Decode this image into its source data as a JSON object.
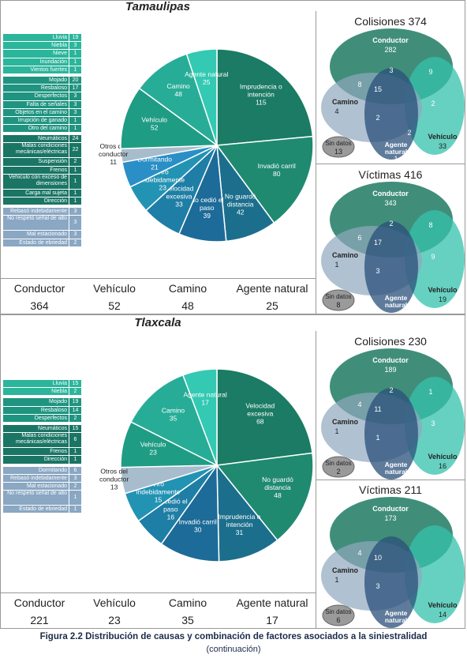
{
  "colors": {
    "conductor": "#1f7a64",
    "vehiculo": "#22a088",
    "camino": "#2fc0a8",
    "agente": "#3dcdb5",
    "otros": "#9fb6c9",
    "blue1": "#1c6f9c",
    "blue2": "#2184b2",
    "legend_teal_light": "#2bb59b",
    "legend_teal_mid": "#1f9480",
    "legend_teal_dark": "#1a7565",
    "legend_blue": "#8aa7c3"
  },
  "tamaulipas": {
    "title": "Tamaulipas",
    "legend": {
      "agente": [
        [
          "Lluvia",
          "19"
        ],
        [
          "Niebla",
          "3"
        ],
        [
          "Nieve",
          "1"
        ],
        [
          "Inundación",
          "1"
        ],
        [
          "Vientos fuertes",
          "1"
        ]
      ],
      "camino": [
        [
          "Mojado",
          "20"
        ],
        [
          "Resbaloso",
          "17"
        ],
        [
          "Desperfectos",
          "3"
        ],
        [
          "Falta de señales",
          "3"
        ],
        [
          "Objetos en el camino",
          "3"
        ],
        [
          "Irrupción de ganado",
          "1"
        ],
        [
          "Otro del camino",
          "1"
        ]
      ],
      "vehiculo": [
        [
          "Neumáticos",
          "24"
        ],
        [
          "Malas condiciones mecánicas/eléctricas",
          "22"
        ],
        [
          "Suspensión",
          "2"
        ],
        [
          "Frenos",
          "1"
        ],
        [
          "Vehículo con exceso de dimensiones",
          "1"
        ],
        [
          "Carga mal sujeta",
          "1"
        ],
        [
          "Dirección",
          "1"
        ]
      ],
      "conductor": [
        [
          "Rebasó indebidamente",
          "3"
        ],
        [
          "No respetó señal de alto",
          "3"
        ],
        [
          "Mal estacionado",
          "3"
        ],
        [
          "Estado de ebriedad",
          "2"
        ]
      ]
    },
    "pie": [
      {
        "label": "Imprudencia o intención",
        "value": 115,
        "group": "c1"
      },
      {
        "label": "Invadió carril",
        "value": 80,
        "group": "c2"
      },
      {
        "label": "No guardó distancia",
        "value": 42,
        "group": "c3"
      },
      {
        "label": "No cedió el paso",
        "value": 39,
        "group": "c4"
      },
      {
        "label": "Velocidad excesiva",
        "value": 33,
        "group": "c5"
      },
      {
        "label": "Viro indebidamente",
        "value": 23,
        "group": "c6"
      },
      {
        "label": "Dormitando",
        "value": 21,
        "group": "c7"
      },
      {
        "label": "Otros del conductor",
        "value": 11,
        "group": "otros"
      },
      {
        "label": "Vehículo",
        "value": 52,
        "group": "veh"
      },
      {
        "label": "Camino",
        "value": 48,
        "group": "cam"
      },
      {
        "label": "Agente natural",
        "value": 25,
        "group": "age"
      }
    ],
    "summary": [
      [
        "Conductor",
        "364"
      ],
      [
        "Vehículo",
        "52"
      ],
      [
        "Camino",
        "48"
      ],
      [
        "Agente natural",
        "25"
      ]
    ],
    "venn_col": {
      "title": "Colisiones",
      "total": "374",
      "conductor": "282",
      "camino": "4",
      "vehiculo": "33",
      "agente": "1",
      "cv": "9",
      "cc": "8",
      "cca": "3",
      "ccv": "15",
      "cva": "2",
      "ca": "2",
      "cav": "2",
      "sin": "13"
    },
    "venn_vic": {
      "title": "Víctimas",
      "total": "416",
      "conductor": "343",
      "camino": "1",
      "vehiculo": "19",
      "agente": "",
      "cv": "8",
      "cc": "6",
      "cca": "2",
      "ccv": "17",
      "cva": "9",
      "ca": "3",
      "cav": "",
      "sin": "8"
    }
  },
  "tlaxcala": {
    "title": "Tlaxcala",
    "legend": {
      "agente": [
        [
          "Lluvia",
          "15"
        ],
        [
          "Niebla",
          "2"
        ]
      ],
      "camino": [
        [
          "Mojado",
          "19"
        ],
        [
          "Resbaloso",
          "14"
        ],
        [
          "Desperfectos",
          "2"
        ]
      ],
      "vehiculo": [
        [
          "Neumáticos",
          "15"
        ],
        [
          "Malas condiciones mecánicas/eléctricas",
          "6"
        ],
        [
          "Frenos",
          "1"
        ],
        [
          "Dirección",
          "1"
        ]
      ],
      "conductor": [
        [
          "Dormitando",
          "6"
        ],
        [
          "Rebasó indebidamente",
          "3"
        ],
        [
          "Mal estacionado",
          "2"
        ],
        [
          "No respetó señal de alto",
          "1"
        ],
        [
          "Estado de ebriedad",
          "1"
        ]
      ]
    },
    "pie": [
      {
        "label": "Velocidad excesiva",
        "value": 68,
        "group": "c1"
      },
      {
        "label": "No guardó distancia",
        "value": 48,
        "group": "c2"
      },
      {
        "label": "Imprudencia o intención",
        "value": 31,
        "group": "c3"
      },
      {
        "label": "Invadió carril",
        "value": 30,
        "group": "c4"
      },
      {
        "label": "No cedió el paso",
        "value": 16,
        "group": "c5"
      },
      {
        "label": "Viro indebidamente",
        "value": 15,
        "group": "c6"
      },
      {
        "label": "Otros del conductor",
        "value": 13,
        "group": "otros"
      },
      {
        "label": "Vehículo",
        "value": 23,
        "group": "veh"
      },
      {
        "label": "Camino",
        "value": 35,
        "group": "cam"
      },
      {
        "label": "Agente natural",
        "value": 17,
        "group": "age"
      }
    ],
    "summary": [
      [
        "Conductor",
        "221"
      ],
      [
        "Vehículo",
        "23"
      ],
      [
        "Camino",
        "35"
      ],
      [
        "Agente natural",
        "17"
      ]
    ],
    "venn_col": {
      "title": "Colisiones",
      "total": "230",
      "conductor": "189",
      "camino": "1",
      "vehiculo": "16",
      "agente": "",
      "cv": "1",
      "cc": "4",
      "cca": "2",
      "ccv": "11",
      "cva": "3",
      "ca": "1",
      "cav": "",
      "sin": "2"
    },
    "venn_vic": {
      "title": "Víctimas",
      "total": "211",
      "conductor": "173",
      "camino": "1",
      "vehiculo": "14",
      "agente": "",
      "cv": "",
      "cc": "4",
      "cca": "",
      "ccv": "10",
      "cva": "",
      "ca": "3",
      "cav": "",
      "sin": "6"
    }
  },
  "venn_labels": {
    "conductor": "Conductor",
    "camino": "Camino",
    "vehiculo": "Vehículo",
    "agente": "Agente natural",
    "sin": "Sin datos"
  },
  "caption": {
    "main": "Figura 2.2 Distribución de causas y combinación de factores asociados a la siniestralidad",
    "sub": "(continuación)"
  },
  "chart_data": [
    {
      "type": "pie",
      "title": "Tamaulipas",
      "categories": [
        "Imprudencia o intención",
        "Invadió carril",
        "No guardó distancia",
        "No cedió el paso",
        "Velocidad excesiva",
        "Viro indebidamente",
        "Dormitando",
        "Otros del conductor",
        "Vehículo",
        "Camino",
        "Agente natural"
      ],
      "values": [
        115,
        80,
        42,
        39,
        33,
        23,
        21,
        11,
        52,
        48,
        25
      ]
    },
    {
      "type": "pie",
      "title": "Tlaxcala",
      "categories": [
        "Velocidad excesiva",
        "No guardó distancia",
        "Imprudencia o intención",
        "Invadió carril",
        "No cedió el paso",
        "Viro indebidamente",
        "Otros del conductor",
        "Vehículo",
        "Camino",
        "Agente natural"
      ],
      "values": [
        68,
        48,
        31,
        30,
        16,
        15,
        13,
        23,
        35,
        17
      ]
    }
  ]
}
